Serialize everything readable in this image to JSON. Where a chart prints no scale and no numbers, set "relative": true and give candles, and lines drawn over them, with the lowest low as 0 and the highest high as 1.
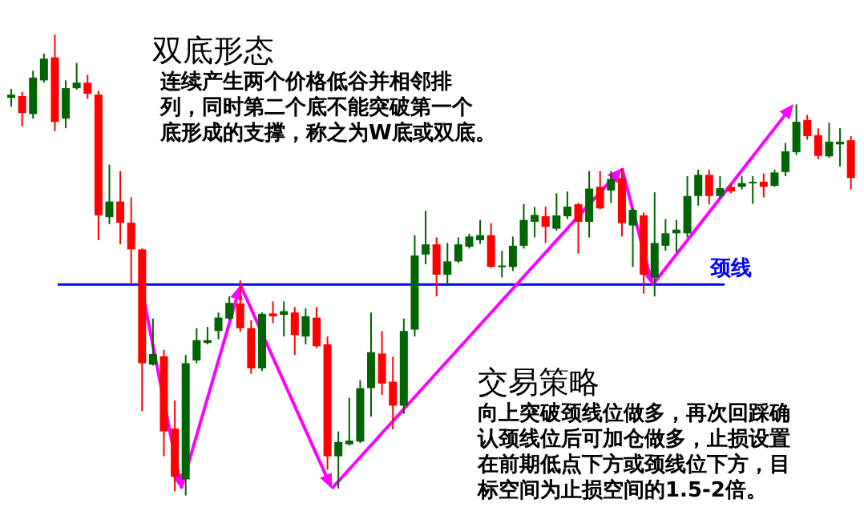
{
  "chart_data": {
    "type": "candlestick",
    "relative": true,
    "title": "双底形态",
    "subtitle": "连续产生两个价格低谷并相邻排列，同时第二个底不能突破第一个底形成的支撑，称之为W底或双底。",
    "annotations": [
      "交易策略",
      "向上突破颈线位做多，再次回踩确认颈线位后可加仓做多，止损设置在前期低点下方或颈线位下方，目标空间为止损空间的1.5-2倍。"
    ],
    "categories": [
      null,
      null,
      null,
      null,
      null,
      null,
      null,
      null,
      null,
      null,
      null,
      null,
      null,
      null,
      null,
      null,
      null,
      null,
      null,
      null,
      null,
      null,
      null,
      null,
      null,
      null,
      null,
      null,
      null,
      null,
      null,
      null,
      null,
      null,
      null,
      null,
      null,
      null,
      null,
      null,
      null,
      null,
      null,
      null,
      null,
      null,
      null,
      null,
      null,
      null,
      null,
      null,
      null,
      null,
      null,
      null,
      null,
      null,
      null,
      null,
      null,
      null,
      null,
      null,
      null,
      null,
      null,
      null,
      null,
      null,
      null,
      null,
      null,
      null,
      null,
      null,
      null,
      null
    ],
    "ohlc": [
      [
        0.863,
        0.882,
        0.844,
        0.87
      ],
      [
        0.867,
        0.876,
        0.801,
        0.83
      ],
      [
        0.828,
        0.922,
        0.818,
        0.907
      ],
      [
        0.901,
        0.959,
        0.896,
        0.948
      ],
      [
        0.951,
        1.0,
        0.791,
        0.811
      ],
      [
        0.818,
        0.901,
        0.797,
        0.884
      ],
      [
        0.884,
        0.939,
        0.881,
        0.896
      ],
      [
        0.896,
        0.913,
        0.861,
        0.872
      ],
      [
        0.87,
        0.878,
        0.554,
        0.608
      ],
      [
        0.604,
        0.718,
        0.589,
        0.638
      ],
      [
        0.638,
        0.704,
        0.545,
        0.592
      ],
      [
        0.592,
        0.647,
        0.461,
        0.534
      ],
      [
        0.534,
        0.536,
        0.183,
        0.287
      ],
      [
        0.284,
        0.384,
        0.282,
        0.307
      ],
      [
        0.302,
        0.316,
        0.085,
        0.139
      ],
      [
        0.145,
        0.206,
        0.009,
        0.041
      ],
      [
        0.035,
        0.305,
        0.0,
        0.287
      ],
      [
        0.293,
        0.363,
        0.287,
        0.337
      ],
      [
        0.331,
        0.366,
        0.328,
        0.337
      ],
      [
        0.357,
        0.397,
        0.339,
        0.386
      ],
      [
        0.384,
        0.432,
        0.38,
        0.418
      ],
      [
        0.417,
        0.467,
        0.355,
        0.363
      ],
      [
        0.363,
        0.38,
        0.264,
        0.276
      ],
      [
        0.276,
        0.397,
        0.27,
        0.394
      ],
      [
        0.395,
        0.421,
        0.374,
        0.389
      ],
      [
        0.392,
        0.421,
        0.345,
        0.4
      ],
      [
        0.397,
        0.409,
        0.305,
        0.348
      ],
      [
        0.345,
        0.406,
        0.328,
        0.389
      ],
      [
        0.386,
        0.409,
        0.32,
        0.324
      ],
      [
        0.328,
        0.345,
        0.056,
        0.085
      ],
      [
        0.085,
        0.139,
        0.015,
        0.116
      ],
      [
        0.111,
        0.212,
        0.108,
        0.119
      ],
      [
        0.117,
        0.25,
        0.114,
        0.233
      ],
      [
        0.233,
        0.397,
        0.171,
        0.311
      ],
      [
        0.308,
        0.357,
        0.218,
        0.243
      ],
      [
        0.247,
        0.301,
        0.143,
        0.195
      ],
      [
        0.195,
        0.384,
        0.177,
        0.357
      ],
      [
        0.36,
        0.565,
        0.345,
        0.521
      ],
      [
        0.523,
        0.618,
        0.502,
        0.545
      ],
      [
        0.545,
        0.56,
        0.432,
        0.479
      ],
      [
        0.479,
        0.548,
        0.455,
        0.508
      ],
      [
        0.508,
        0.56,
        0.505,
        0.545
      ],
      [
        0.54,
        0.568,
        0.536,
        0.562
      ],
      [
        0.554,
        0.598,
        0.546,
        0.565
      ],
      [
        0.565,
        0.591,
        0.494,
        0.496
      ],
      [
        0.496,
        0.531,
        0.473,
        0.499
      ],
      [
        0.496,
        0.562,
        0.487,
        0.542
      ],
      [
        0.542,
        0.633,
        0.536,
        0.598
      ],
      [
        0.594,
        0.626,
        0.56,
        0.609
      ],
      [
        0.606,
        0.627,
        0.548,
        0.583
      ],
      [
        0.579,
        0.656,
        0.575,
        0.608
      ],
      [
        0.606,
        0.66,
        0.6,
        0.627
      ],
      [
        0.632,
        0.635,
        0.525,
        0.594
      ],
      [
        0.594,
        0.704,
        0.56,
        0.666
      ],
      [
        0.67,
        0.704,
        0.621,
        0.623
      ],
      [
        0.662,
        0.704,
        0.635,
        0.687
      ],
      [
        0.689,
        0.71,
        0.562,
        0.591
      ],
      [
        0.586,
        0.623,
        0.496,
        0.62
      ],
      [
        0.608,
        0.614,
        0.438,
        0.479
      ],
      [
        0.473,
        0.658,
        0.432,
        0.548
      ],
      [
        0.542,
        0.6,
        0.531,
        0.569
      ],
      [
        0.569,
        0.598,
        0.528,
        0.577
      ],
      [
        0.569,
        0.693,
        0.56,
        0.65
      ],
      [
        0.65,
        0.707,
        0.629,
        0.696
      ],
      [
        0.696,
        0.707,
        0.632,
        0.65
      ],
      [
        0.65,
        0.693,
        0.644,
        0.667
      ],
      [
        0.67,
        0.676,
        0.656,
        0.66
      ],
      [
        0.67,
        0.693,
        0.664,
        0.678
      ],
      [
        0.678,
        0.693,
        0.633,
        0.681
      ],
      [
        0.681,
        0.699,
        0.647,
        0.67
      ],
      [
        0.672,
        0.707,
        0.67,
        0.701
      ],
      [
        0.702,
        0.765,
        0.693,
        0.747
      ],
      [
        0.745,
        0.849,
        0.739,
        0.811
      ],
      [
        0.815,
        0.826,
        0.772,
        0.78
      ],
      [
        0.782,
        0.797,
        0.73,
        0.737
      ],
      [
        0.736,
        0.809,
        0.733,
        0.768
      ],
      [
        0.762,
        0.797,
        0.714,
        0.768
      ],
      [
        0.771,
        0.78,
        0.664,
        0.689
      ]
    ],
    "colors": [
      "#006400",
      "#ff0000",
      "#006400",
      "#006400",
      "#ff0000",
      "#006400",
      "#006400",
      "#ff0000",
      "#ff0000",
      "#006400",
      "#ff0000",
      "#ff0000",
      "#ff0000",
      "#006400",
      "#ff0000",
      "#ff0000",
      "#006400",
      "#006400",
      "#006400",
      "#006400",
      "#006400",
      "#ff0000",
      "#ff0000",
      "#006400",
      "#ff0000",
      "#006400",
      "#ff0000",
      "#006400",
      "#ff0000",
      "#ff0000",
      "#006400",
      "#006400",
      "#006400",
      "#006400",
      "#ff0000",
      "#ff0000",
      "#006400",
      "#006400",
      "#006400",
      "#ff0000",
      "#006400",
      "#006400",
      "#006400",
      "#006400",
      "#ff0000",
      "#006400",
      "#006400",
      "#006400",
      "#006400",
      "#ff0000",
      "#006400",
      "#006400",
      "#ff0000",
      "#006400",
      "#ff0000",
      "#006400",
      "#ff0000",
      "#006400",
      "#ff0000",
      "#006400",
      "#006400",
      "#006400",
      "#006400",
      "#006400",
      "#ff0000",
      "#006400",
      "#ff0000",
      "#006400",
      "#006400",
      "#ff0000",
      "#006400",
      "#006400",
      "#006400",
      "#ff0000",
      "#ff0000",
      "#006400",
      "#006400",
      "#ff0000"
    ],
    "ref_lines": [
      {
        "axis": "y",
        "value": 0.458,
        "label": "颈线",
        "color": "#0000ff"
      }
    ]
  }
}
